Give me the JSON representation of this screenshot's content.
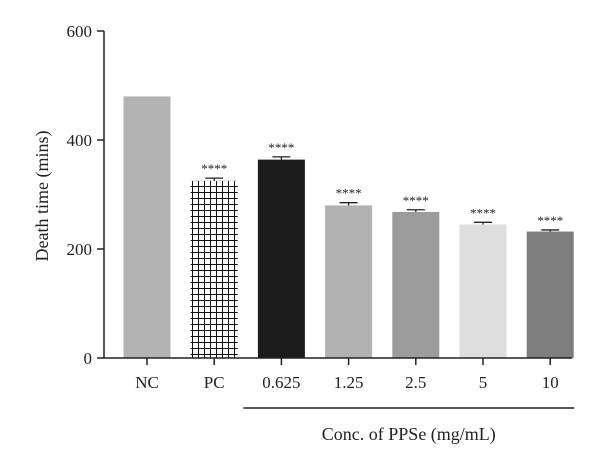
{
  "chart_data": {
    "type": "bar",
    "categories": [
      "NC",
      "PC",
      "0.625",
      "1.25",
      "2.5",
      "5",
      "10"
    ],
    "values": [
      480,
      325,
      364,
      280,
      268,
      245,
      232
    ],
    "errors": [
      0,
      5,
      5,
      5,
      4,
      4,
      3
    ],
    "significance": [
      "",
      "****",
      "****",
      "****",
      "****",
      "****",
      "****"
    ],
    "bar_colors": [
      "#b3b3b3",
      "pattern-grid",
      "#1c1c1c",
      "#b1b1b1",
      "#9c9c9c",
      "#dedede",
      "#7d7d7d"
    ],
    "ylabel": "Death time (mins)",
    "group_label": "Conc. of PPSe (mg/mL)",
    "ylim": [
      0,
      600
    ],
    "yticks": [
      0,
      200,
      400,
      600
    ],
    "grid": false
  }
}
